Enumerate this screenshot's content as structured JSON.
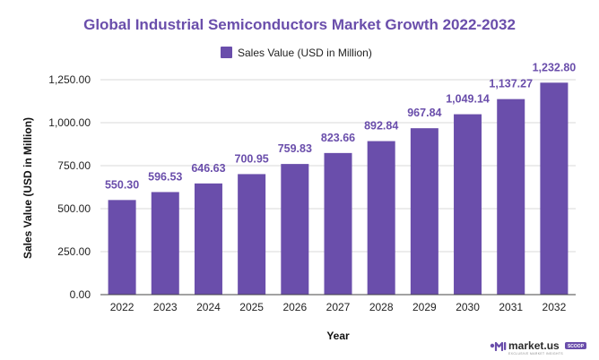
{
  "chart_data": {
    "type": "bar",
    "title": "Global Industrial Semiconductors Market Growth 2022-2032",
    "categories": [
      "2022",
      "2023",
      "2024",
      "2025",
      "2026",
      "2027",
      "2028",
      "2029",
      "2030",
      "2031",
      "2032"
    ],
    "series": [
      {
        "name": "Sales Value (USD in Million)",
        "values": [
          550.3,
          596.53,
          646.63,
          700.95,
          759.83,
          823.66,
          892.84,
          967.84,
          1049.14,
          1137.27,
          1232.8
        ],
        "value_labels": [
          "550.30",
          "596.53",
          "646.63",
          "700.95",
          "759.83",
          "823.66",
          "892.84",
          "967.84",
          "1,049.14",
          "1,137.27",
          "1,232.80"
        ]
      }
    ],
    "xlabel": "Year",
    "ylabel": "Sales Value (USD in Million)",
    "ylim": [
      0,
      1250
    ],
    "yticks": [
      0,
      250,
      500,
      750,
      1000,
      1250
    ],
    "ytick_labels": [
      "0.00",
      "250.00",
      "500.00",
      "750.00",
      "1,000.00",
      "1,250.00"
    ],
    "grid": true,
    "legend_position": "top-center"
  },
  "colors": {
    "bar": "#6a4eab",
    "title": "#6a4eab",
    "data_label": "#6a4eab",
    "grid": "#d9d9d9",
    "axis": "#444444"
  },
  "brand": {
    "logo_text": "market.us",
    "badge_text": "SCOOP",
    "tagline": "EXCLUSIVE MARKET INSIGHTS"
  }
}
